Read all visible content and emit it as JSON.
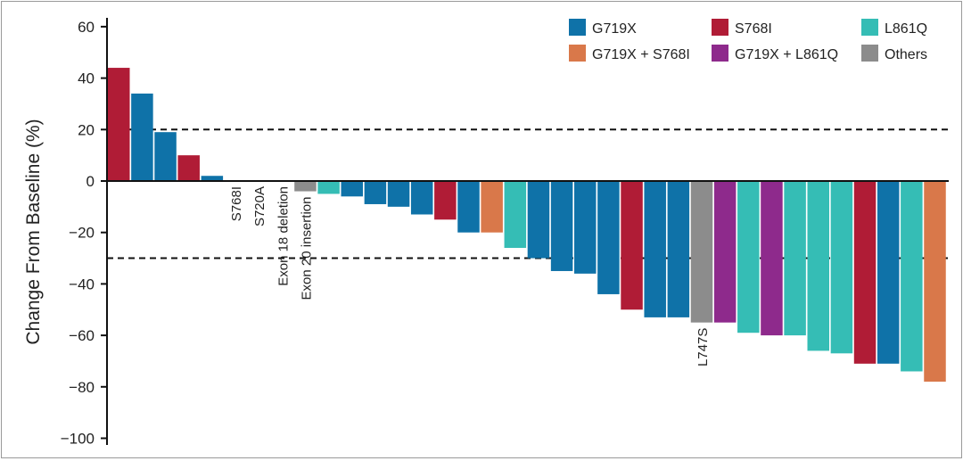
{
  "chart_data": {
    "type": "bar",
    "ylabel": "Change From Baseline (%)",
    "xlabel": "",
    "ylim": [
      -100,
      60
    ],
    "yticks": [
      60,
      40,
      20,
      0,
      -20,
      -40,
      -60,
      -80,
      -100
    ],
    "reference_lines": [
      20,
      -30
    ],
    "legend_position": "top-right",
    "legend": [
      {
        "name": "G719X",
        "color": "#0f72a8"
      },
      {
        "name": "S768I",
        "color": "#b01c36"
      },
      {
        "name": "L861Q",
        "color": "#35bdb5"
      },
      {
        "name": "G719X + S768I",
        "color": "#d9784a"
      },
      {
        "name": "G719X + L861Q",
        "color": "#8e2a8c"
      },
      {
        "name": "Others",
        "color": "#8c8c8c"
      }
    ],
    "bars": [
      {
        "group": "S768I",
        "value": 44
      },
      {
        "group": "G719X",
        "value": 34
      },
      {
        "group": "G719X",
        "value": 19
      },
      {
        "group": "S768I",
        "value": 10
      },
      {
        "group": "G719X",
        "value": 2
      },
      {
        "group": "Others",
        "value": 0,
        "label": "S768I"
      },
      {
        "group": "Others",
        "value": 0,
        "label": "S720A"
      },
      {
        "group": "Others",
        "value": 0,
        "label": "Exon 18 deletion"
      },
      {
        "group": "Others",
        "value": -4,
        "label": "Exon 20 insertion"
      },
      {
        "group": "L861Q",
        "value": -5
      },
      {
        "group": "G719X",
        "value": -6
      },
      {
        "group": "G719X",
        "value": -9
      },
      {
        "group": "G719X",
        "value": -10
      },
      {
        "group": "G719X",
        "value": -13
      },
      {
        "group": "S768I",
        "value": -15
      },
      {
        "group": "G719X",
        "value": -20
      },
      {
        "group": "G719X + S768I",
        "value": -20
      },
      {
        "group": "L861Q",
        "value": -26
      },
      {
        "group": "G719X",
        "value": -30
      },
      {
        "group": "G719X",
        "value": -35
      },
      {
        "group": "G719X",
        "value": -36
      },
      {
        "group": "G719X",
        "value": -44
      },
      {
        "group": "S768I",
        "value": -50
      },
      {
        "group": "G719X",
        "value": -53
      },
      {
        "group": "G719X",
        "value": -53
      },
      {
        "group": "Others",
        "value": -55,
        "label": "L747S"
      },
      {
        "group": "G719X + L861Q",
        "value": -55
      },
      {
        "group": "L861Q",
        "value": -59
      },
      {
        "group": "G719X + L861Q",
        "value": -60
      },
      {
        "group": "L861Q",
        "value": -60
      },
      {
        "group": "L861Q",
        "value": -66
      },
      {
        "group": "L861Q",
        "value": -67
      },
      {
        "group": "S768I",
        "value": -71
      },
      {
        "group": "G719X",
        "value": -71
      },
      {
        "group": "L861Q",
        "value": -74
      },
      {
        "group": "G719X + S768I",
        "value": -78
      }
    ]
  }
}
